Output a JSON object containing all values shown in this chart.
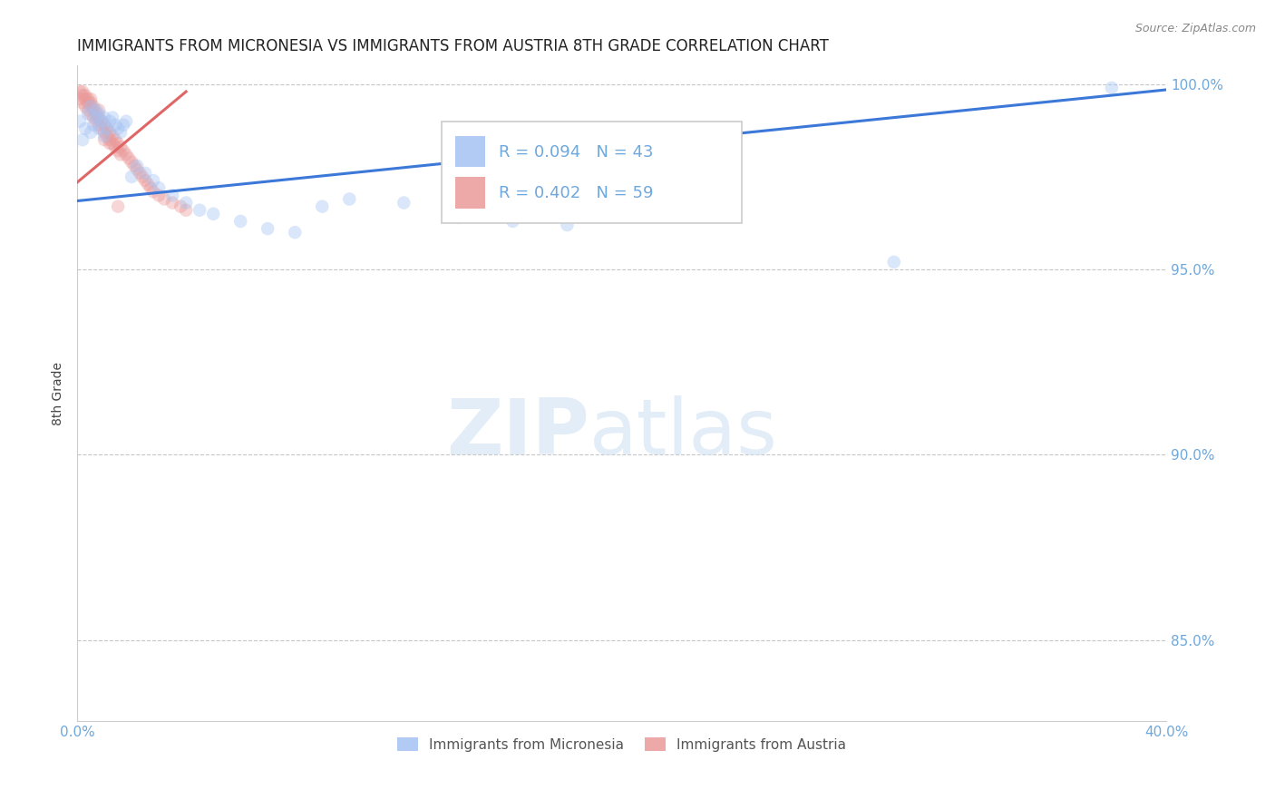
{
  "title": "IMMIGRANTS FROM MICRONESIA VS IMMIGRANTS FROM AUSTRIA 8TH GRADE CORRELATION CHART",
  "source_text": "Source: ZipAtlas.com",
  "ylabel": "8th Grade",
  "xlim": [
    0.0,
    0.4
  ],
  "ylim": [
    0.828,
    1.005
  ],
  "yticks": [
    0.85,
    0.9,
    0.95,
    1.0
  ],
  "ytick_labels": [
    "85.0%",
    "90.0%",
    "95.0%",
    "100.0%"
  ],
  "xticks": [
    0.0,
    0.1,
    0.2,
    0.3,
    0.4
  ],
  "xtick_labels": [
    "0.0%",
    "",
    "",
    "",
    "40.0%"
  ],
  "blue_color": "#a4c2f4",
  "pink_color": "#ea9999",
  "blue_line_color": "#3c78d8",
  "pink_line_color": "#e06666",
  "axis_color": "#6fa8dc",
  "grid_color": "#b0b0b0",
  "legend_R_blue": "R = 0.094",
  "legend_N_blue": "N = 43",
  "legend_R_pink": "R = 0.402",
  "legend_N_pink": "N = 59",
  "legend_label_blue": "Immigrants from Micronesia",
  "legend_label_pink": "Immigrants from Austria",
  "watermark_zip": "ZIP",
  "watermark_atlas": "atlas",
  "blue_scatter_x": [
    0.001,
    0.002,
    0.003,
    0.004,
    0.005,
    0.005,
    0.006,
    0.007,
    0.007,
    0.008,
    0.008,
    0.009,
    0.01,
    0.01,
    0.011,
    0.012,
    0.013,
    0.014,
    0.015,
    0.016,
    0.017,
    0.018,
    0.02,
    0.022,
    0.025,
    0.028,
    0.03,
    0.035,
    0.04,
    0.045,
    0.05,
    0.06,
    0.07,
    0.08,
    0.09,
    0.1,
    0.12,
    0.14,
    0.16,
    0.18,
    0.22,
    0.3,
    0.38
  ],
  "blue_scatter_y": [
    0.99,
    0.985,
    0.988,
    0.992,
    0.987,
    0.994,
    0.989,
    0.991,
    0.993,
    0.988,
    0.992,
    0.99,
    0.986,
    0.991,
    0.988,
    0.99,
    0.991,
    0.989,
    0.988,
    0.987,
    0.989,
    0.99,
    0.975,
    0.978,
    0.976,
    0.974,
    0.972,
    0.97,
    0.968,
    0.966,
    0.965,
    0.963,
    0.961,
    0.96,
    0.967,
    0.969,
    0.968,
    0.964,
    0.963,
    0.962,
    0.968,
    0.952,
    0.999
  ],
  "pink_scatter_x": [
    0.001,
    0.001,
    0.002,
    0.002,
    0.003,
    0.003,
    0.004,
    0.004,
    0.005,
    0.005,
    0.005,
    0.006,
    0.006,
    0.007,
    0.007,
    0.008,
    0.008,
    0.009,
    0.009,
    0.01,
    0.01,
    0.011,
    0.011,
    0.012,
    0.012,
    0.013,
    0.013,
    0.014,
    0.014,
    0.015,
    0.015,
    0.016,
    0.016,
    0.017,
    0.018,
    0.019,
    0.02,
    0.021,
    0.022,
    0.023,
    0.024,
    0.025,
    0.026,
    0.027,
    0.028,
    0.03,
    0.032,
    0.035,
    0.038,
    0.04,
    0.002,
    0.003,
    0.004,
    0.005,
    0.006,
    0.008,
    0.01,
    0.012,
    0.015
  ],
  "pink_scatter_y": [
    0.998,
    0.996,
    0.997,
    0.995,
    0.996,
    0.994,
    0.995,
    0.993,
    0.994,
    0.992,
    0.996,
    0.993,
    0.991,
    0.992,
    0.99,
    0.991,
    0.989,
    0.99,
    0.988,
    0.989,
    0.987,
    0.988,
    0.986,
    0.987,
    0.985,
    0.986,
    0.984,
    0.985,
    0.983,
    0.984,
    0.982,
    0.983,
    0.981,
    0.982,
    0.981,
    0.98,
    0.979,
    0.978,
    0.977,
    0.976,
    0.975,
    0.974,
    0.973,
    0.972,
    0.971,
    0.97,
    0.969,
    0.968,
    0.967,
    0.966,
    0.998,
    0.997,
    0.996,
    0.995,
    0.994,
    0.993,
    0.985,
    0.984,
    0.967
  ],
  "blue_trend_x": [
    0.0,
    0.4
  ],
  "blue_trend_y": [
    0.9685,
    0.9985
  ],
  "pink_trend_x": [
    0.0,
    0.04
  ],
  "pink_trend_y": [
    0.9735,
    0.998
  ],
  "marker_size": 110,
  "marker_alpha": 0.4,
  "title_fontsize": 12,
  "axis_label_fontsize": 10,
  "tick_fontsize": 11
}
